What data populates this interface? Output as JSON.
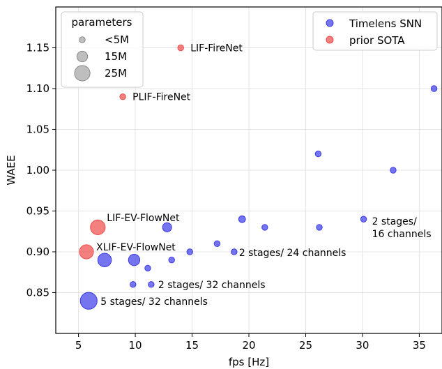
{
  "chart_data": {
    "type": "scatter",
    "title": "",
    "xlabel": "fps [Hz]",
    "ylabel": "WAEE",
    "xlim": [
      3,
      37
    ],
    "ylim": [
      0.8,
      1.2
    ],
    "xticks": [
      "5",
      "10",
      "15",
      "20",
      "25",
      "30",
      "35"
    ],
    "yticks": [
      "0.85",
      "0.90",
      "0.95",
      "1.00",
      "1.05",
      "1.10",
      "1.15"
    ],
    "grid": true,
    "colors": {
      "snn": "#3a3ae8",
      "sota": "#f04848",
      "size_legend": "#a8a8a8"
    },
    "series": [
      {
        "name": "Timelens SNN",
        "points": [
          {
            "x": 36.3,
            "y": 1.1,
            "params_m": 1
          },
          {
            "x": 26.1,
            "y": 1.02,
            "params_m": 1
          },
          {
            "x": 32.7,
            "y": 1.0,
            "params_m": 1
          },
          {
            "x": 19.4,
            "y": 0.94,
            "params_m": 2
          },
          {
            "x": 30.1,
            "y": 0.94,
            "params_m": 1
          },
          {
            "x": 12.8,
            "y": 0.93,
            "params_m": 6
          },
          {
            "x": 21.4,
            "y": 0.93,
            "params_m": 1
          },
          {
            "x": 26.2,
            "y": 0.93,
            "params_m": 1
          },
          {
            "x": 17.2,
            "y": 0.91,
            "params_m": 1
          },
          {
            "x": 14.8,
            "y": 0.9,
            "params_m": 1
          },
          {
            "x": 18.7,
            "y": 0.9,
            "params_m": 1
          },
          {
            "x": 7.3,
            "y": 0.89,
            "params_m": 20
          },
          {
            "x": 9.9,
            "y": 0.89,
            "params_m": 12
          },
          {
            "x": 13.2,
            "y": 0.89,
            "params_m": 1
          },
          {
            "x": 11.1,
            "y": 0.88,
            "params_m": 1
          },
          {
            "x": 9.8,
            "y": 0.86,
            "params_m": 1
          },
          {
            "x": 11.4,
            "y": 0.86,
            "params_m": 1
          },
          {
            "x": 5.9,
            "y": 0.84,
            "params_m": 35
          }
        ]
      },
      {
        "name": "prior SOTA",
        "points": [
          {
            "x": 14.0,
            "y": 1.15,
            "params_m": 1
          },
          {
            "x": 8.9,
            "y": 1.09,
            "params_m": 1
          },
          {
            "x": 6.7,
            "y": 0.93,
            "params_m": 25
          },
          {
            "x": 5.7,
            "y": 0.9,
            "params_m": 22
          }
        ]
      }
    ],
    "annotations": [
      {
        "text": "LIF-FireNet",
        "x": 14.0,
        "y": 1.15,
        "dx": 14,
        "dy": 5
      },
      {
        "text": "PLIF-FireNet",
        "x": 8.9,
        "y": 1.09,
        "dx": 14,
        "dy": 5
      },
      {
        "text": "LIF-EV-FlowNet",
        "x": 6.7,
        "y": 0.93,
        "dx": 13,
        "dy": -9
      },
      {
        "text": "XLIF-EV-FlowNet",
        "x": 5.7,
        "y": 0.9,
        "dx": 14,
        "dy": -2
      },
      {
        "text": "2 stages/ 24 channels",
        "x": 18.7,
        "y": 0.9,
        "dx": 7,
        "dy": 6
      },
      {
        "text": "2 stages/ 32 channels",
        "x": 11.4,
        "y": 0.86,
        "dx": 10,
        "dy": 5
      },
      {
        "text": "5 stages/ 32 channels",
        "x": 5.9,
        "y": 0.84,
        "dx": 17,
        "dy": 6
      },
      {
        "text": "2 stages/",
        "x": 30.1,
        "y": 0.94,
        "dx": 12,
        "dy": 8
      },
      {
        "text": "16 channels",
        "x": 30.1,
        "y": 0.94,
        "dx": 12,
        "dy": 26
      }
    ],
    "size_legend": {
      "title": "parameters",
      "placement": "top-left",
      "entries": [
        {
          "label": "<5M",
          "params_m": 1
        },
        {
          "label": "15M",
          "params_m": 10
        },
        {
          "label": "25M",
          "params_m": 28
        }
      ]
    },
    "color_legend": {
      "placement": "top-right",
      "entries": [
        "Timelens SNN",
        "prior SOTA"
      ]
    }
  }
}
